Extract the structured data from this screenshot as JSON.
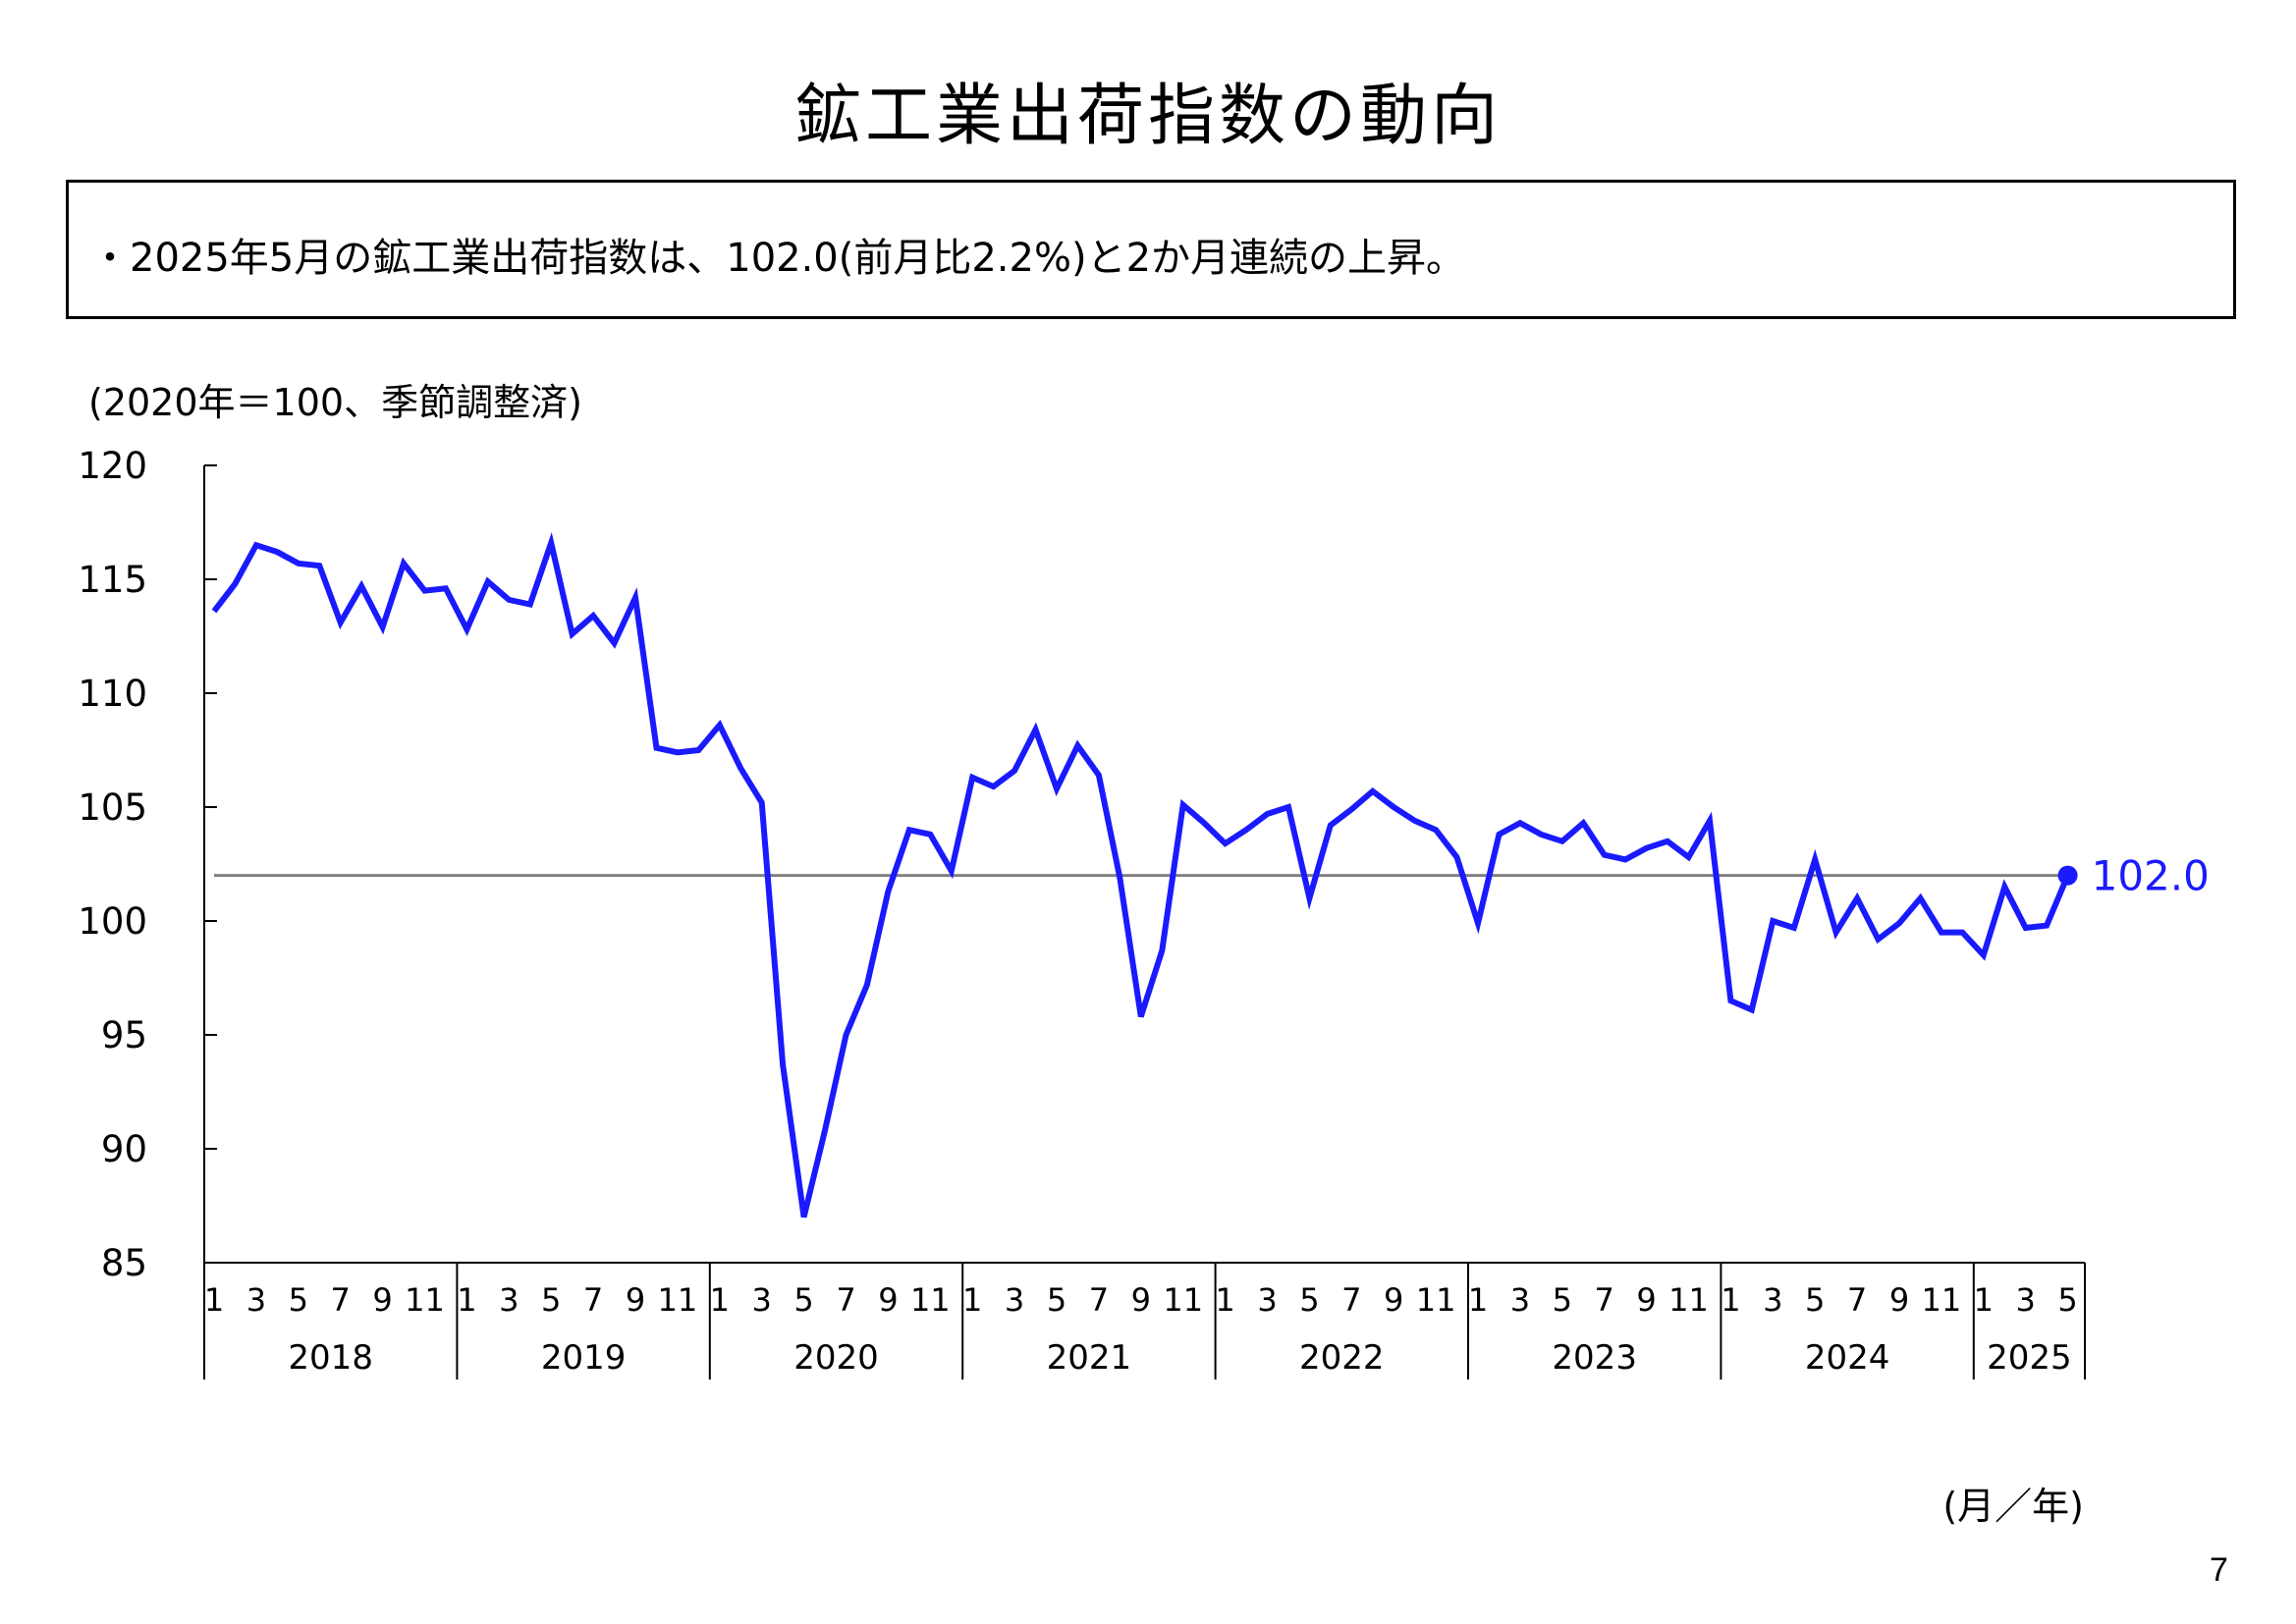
{
  "page": {
    "title": "鉱工業出荷指数の動向",
    "summary": "・2025年5月の鉱工業出荷指数は、102.0(前月比2.2%)と2か月連続の上昇。",
    "page_number": "7"
  },
  "chart_data": {
    "type": "line",
    "title": "",
    "unit_label": "(2020年＝100、季節調整済)",
    "xlabel": "(月／年)",
    "ylabel": "",
    "ylim": [
      85,
      120
    ],
    "yticks": [
      85,
      90,
      95,
      100,
      105,
      110,
      115,
      120
    ],
    "grid": false,
    "years": [
      "2018",
      "2019",
      "2020",
      "2021",
      "2022",
      "2023",
      "2024",
      "2025"
    ],
    "month_ticks": [
      "1",
      "3",
      "5",
      "7",
      "9",
      "11"
    ],
    "month_ticks_2025": [
      "1",
      "3",
      "5"
    ],
    "reference_line": 102.0,
    "last_label": "102.0",
    "colors": {
      "series": "#1a1aff",
      "reference": "#808080",
      "axis": "#000000"
    },
    "series": [
      {
        "values": [
          113.6,
          114.8,
          116.5,
          116.2,
          115.7,
          115.6,
          113.1,
          114.7,
          112.9,
          115.7,
          114.5,
          114.6,
          112.8,
          114.9,
          114.1,
          113.9,
          116.6,
          112.6,
          113.4,
          112.2,
          114.2,
          107.6,
          107.4,
          107.5,
          108.6,
          106.7,
          105.2,
          93.7,
          87.0,
          90.8,
          95.0,
          97.2,
          101.3,
          104.0,
          103.8,
          102.2,
          106.3,
          105.9,
          106.6,
          108.4,
          105.8,
          107.7,
          106.4,
          101.9,
          95.8,
          98.7,
          105.1,
          104.3,
          103.4,
          104.0,
          104.7,
          105.0,
          101.0,
          104.2,
          104.9,
          105.7,
          105.0,
          104.4,
          104.0,
          102.8,
          99.9,
          103.8,
          104.3,
          103.8,
          103.5,
          104.3,
          102.9,
          102.7,
          103.2,
          103.5,
          102.8,
          104.4,
          96.5,
          96.1,
          100.0,
          99.7,
          102.7,
          99.5,
          101.0,
          99.2,
          99.9,
          101.0,
          99.5,
          99.5,
          98.5,
          101.5,
          99.7,
          99.8,
          102.0
        ]
      }
    ]
  }
}
